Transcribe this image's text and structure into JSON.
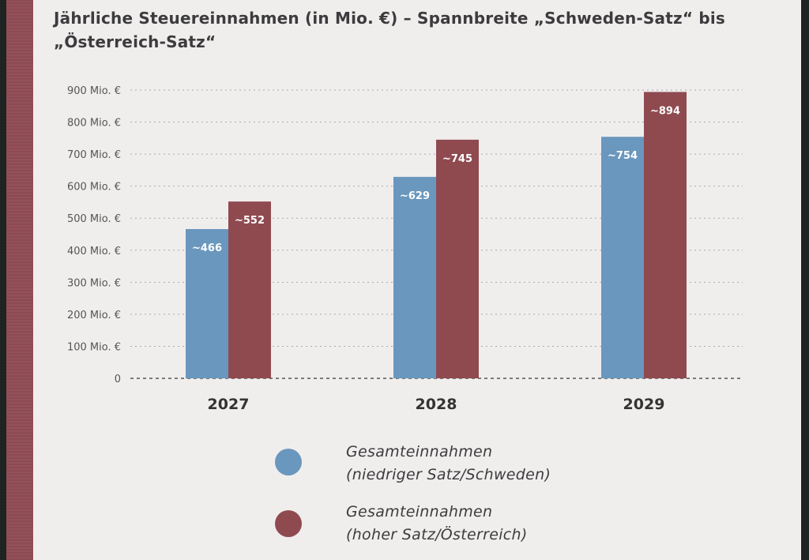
{
  "chart_data": {
    "type": "bar",
    "title": "Jährliche Steuereinnahmen (in Mio. €) – Spannbreite „Schweden-Satz“ bis „Österreich-Satz“",
    "categories": [
      "2027",
      "2028",
      "2029"
    ],
    "series": [
      {
        "name": "Gesamteinnahmen (niedriger Satz/Schweden)",
        "line1": "Gesamteinnahmen",
        "line2": "(niedriger Satz/Schweden)",
        "color": "#6a97bd",
        "values": [
          466,
          629,
          754
        ],
        "labels": [
          "~466",
          "~629",
          "~754"
        ]
      },
      {
        "name": "Gesamteinnahmen (hoher Satz/Österreich)",
        "line1": "Gesamteinnahmen",
        "line2": "(hoher Satz/Österreich)",
        "color": "#8f4a50",
        "values": [
          552,
          745,
          894
        ],
        "labels": [
          "~552",
          "~745",
          "~894"
        ]
      }
    ],
    "yticks": [
      0,
      100,
      200,
      300,
      400,
      500,
      600,
      700,
      800,
      900
    ],
    "ytick_labels": [
      "0",
      "100 Mio. €",
      "200 Mio. €",
      "300 Mio. €",
      "400 Mio. €",
      "500 Mio. €",
      "600 Mio. €",
      "700 Mio. €",
      "800 Mio. €",
      "900 Mio. €"
    ],
    "ylim": [
      0,
      900
    ],
    "xlabel": "",
    "ylabel": "",
    "grid": true,
    "legend_position": "bottom"
  }
}
